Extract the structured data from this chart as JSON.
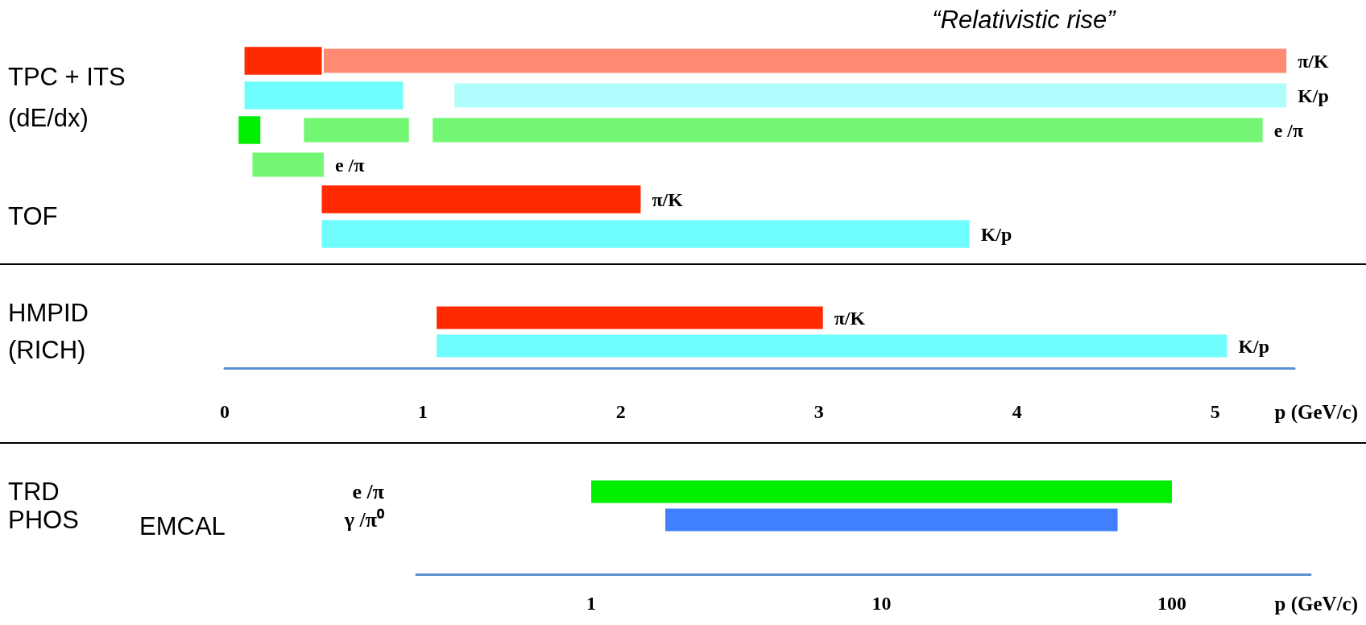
{
  "chart_data": [
    {
      "type": "bar",
      "orientation": "horizontal",
      "xlim": [
        0,
        5.4
      ],
      "xticks": [
        0,
        1,
        2,
        3,
        4,
        5
      ],
      "tick_labels": false,
      "categories": [
        "π/K",
        "K/p",
        "e /π",
        "e /π",
        "π/K",
        "K/p"
      ],
      "annotations": [
        "“Relativistic rise”",
        "TPC + ITS",
        "(dE/dx)",
        "TOF"
      ],
      "series": [
        {
          "base": [
            0.1,
            0.1,
            0.07,
            null,
            0.49,
            0.49
          ],
          "values": [
            0.39,
            0.8,
            0.11,
            null,
            1.61,
            3.27
          ],
          "colors": [
            "#ff2a00",
            "#6ffcfc",
            "#00ee00",
            null,
            "#ff2a00",
            "#6ffcfc"
          ]
        },
        {
          "base": [
            0.5,
            1.16,
            0.4,
            0.14,
            null,
            null
          ],
          "values": [
            4.86,
            4.2,
            0.53,
            0.36,
            null,
            null
          ],
          "colors": [
            "#ff2a00",
            "#6ffcfc",
            "#00ee00",
            "#00ee00",
            null,
            null
          ]
        },
        {
          "base": [
            null,
            null,
            1.05,
            null,
            null,
            null
          ],
          "values": [
            null,
            null,
            4.19,
            null,
            null,
            null
          ],
          "colors": [
            null,
            null,
            "#00ee00",
            null,
            null,
            null
          ]
        }
      ]
    },
    {
      "type": "bar",
      "orientation": "horizontal",
      "xlabel": "p (GeV/c)",
      "xlim": [
        0,
        5.4
      ],
      "xticks": [
        0,
        1,
        2,
        3,
        4,
        5
      ],
      "categories": [
        "π/K",
        "K/p"
      ],
      "annotations": [
        "HMPID",
        "(RICH)"
      ],
      "series": [
        {
          "base": [
            1.07,
            1.07
          ],
          "values": [
            1.95,
            3.99
          ],
          "colors": [
            "#ff2a00",
            "#6ffcfc"
          ]
        }
      ]
    },
    {
      "type": "bar",
      "orientation": "horizontal",
      "xlabel": "p (GeV/c)",
      "log": "x",
      "xlim": [
        0.25,
        300
      ],
      "xticks": [
        1,
        10,
        100
      ],
      "categories": [
        "e /π",
        "γ /π⁰"
      ],
      "annotations": [
        "TRD",
        "PHOS",
        "EMCAL"
      ],
      "series": [
        {
          "base": [
            1,
            1.8
          ],
          "values": [
            99,
            63.2
          ],
          "colors": [
            "#00ee00",
            "#4080ff"
          ]
        }
      ]
    }
  ]
}
